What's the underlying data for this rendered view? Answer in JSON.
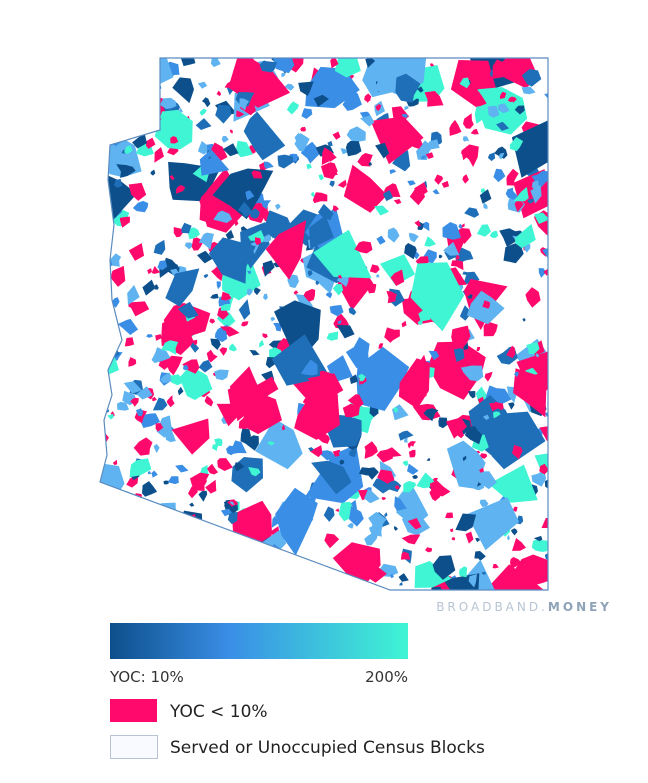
{
  "watermark": {
    "brand": "BROADBAND.",
    "accent": "MONEY"
  },
  "legend": {
    "gradient": {
      "min_label": "YOC: 10%",
      "max_label": "200%"
    },
    "items": [
      {
        "label": "YOC < 10%"
      },
      {
        "label": "Served or Unoccupied Census Blocks"
      }
    ]
  }
}
